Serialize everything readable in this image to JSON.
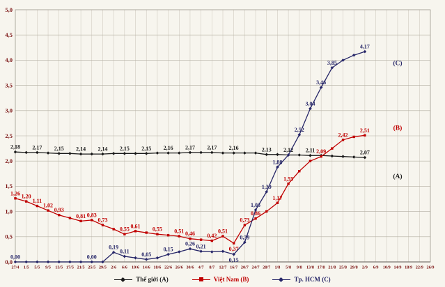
{
  "chart_data": {
    "type": "line",
    "title": "",
    "xlabel": "",
    "ylabel": "",
    "ylim": [
      0,
      5
    ],
    "grid": true,
    "legend_position": "bottom",
    "y_ticks": [
      "0,0",
      "0,5",
      "1,0",
      "1,5",
      "2,0",
      "2,5",
      "3,0",
      "3,5",
      "4,0",
      "4,5",
      "5,0"
    ],
    "categories": [
      "27/4",
      "1/5",
      "5/5",
      "9/5",
      "13/5",
      "17/5",
      "21/5",
      "25/5",
      "29/5",
      "2/6",
      "6/6",
      "10/6",
      "14/6",
      "18/6",
      "22/6",
      "26/6",
      "30/6",
      "4/7",
      "8/7",
      "12/7",
      "16/7",
      "20/7",
      "24/7",
      "28/7",
      "1/8",
      "5/8",
      "9/8",
      "13/8",
      "17/8",
      "21/8",
      "25/8",
      "29/8",
      "2/9",
      "6/9",
      "10/9",
      "14/9",
      "18/9",
      "22/9",
      "26/9"
    ],
    "series": [
      {
        "name": "Thế giới (A)",
        "color": "#1a1a1a",
        "marker": "diamond",
        "values": [
          2.18,
          2.17,
          2.17,
          2.16,
          2.15,
          2.15,
          2.14,
          2.14,
          2.14,
          2.15,
          2.15,
          2.15,
          2.15,
          2.16,
          2.16,
          2.16,
          2.17,
          2.17,
          2.17,
          2.16,
          2.16,
          2.16,
          2.16,
          2.13,
          2.13,
          2.12,
          2.12,
          2.11,
          2.11,
          2.1,
          2.09,
          2.08,
          2.07,
          null,
          null,
          null,
          null,
          null,
          null
        ],
        "point_labels": {
          "0": "2,18",
          "2": "2,17",
          "4": "2,15",
          "6": "2,14",
          "8": "2,14",
          "10": "2,15",
          "12": "2,15",
          "14": "2,16",
          "16": "2,17",
          "18": "2,17",
          "20": "2,16",
          "23": "2,13",
          "25": "2,12",
          "27": "2,11",
          "32": "2,07"
        },
        "labels_below": []
      },
      {
        "name": "Việt Nam (B)",
        "color": "#c00000",
        "marker": "square",
        "values": [
          1.26,
          1.2,
          1.11,
          1.02,
          0.93,
          0.87,
          0.81,
          0.83,
          0.73,
          0.65,
          0.55,
          0.61,
          0.58,
          0.55,
          0.53,
          0.51,
          0.46,
          0.44,
          0.42,
          0.51,
          0.37,
          0.73,
          0.86,
          1.0,
          1.17,
          1.55,
          1.8,
          2.0,
          2.09,
          2.25,
          2.42,
          2.48,
          2.51,
          null,
          null,
          null,
          null,
          null,
          null
        ],
        "point_labels": {
          "0": "1,26",
          "1": "1,20",
          "2": "1,11",
          "3": "1,02",
          "4": "0,93",
          "6": "0,81",
          "7": "0,83",
          "8": "0,73",
          "10": "0,55",
          "11": "0,61",
          "13": "0,55",
          "15": "0,51",
          "16": "0,46",
          "18": "0,42",
          "19": "0,51",
          "20": "0,37",
          "21": "0,73",
          "22": "0,86",
          "24": "1,17",
          "25": "1,55",
          "28": "2,09",
          "30": "2,42",
          "32": "2,51"
        },
        "labels_below": [
          20
        ]
      },
      {
        "name": "Tp. HCM (C)",
        "color": "#262668",
        "marker": "diamond",
        "values": [
          0.0,
          0.0,
          0.0,
          0.0,
          0.0,
          0.0,
          0.0,
          0.0,
          0.0,
          0.19,
          0.11,
          0.08,
          0.05,
          0.08,
          0.15,
          0.2,
          0.26,
          0.21,
          0.2,
          0.21,
          0.15,
          0.39,
          1.03,
          1.39,
          1.88,
          2.12,
          2.52,
          3.04,
          3.46,
          3.85,
          4.0,
          4.1,
          4.17,
          null,
          null,
          null,
          null,
          null,
          null
        ],
        "point_labels": {
          "0": "0,00",
          "7": "0,00",
          "9": "0,19",
          "10": "0,11",
          "12": "0,05",
          "14": "0,15",
          "16": "0,26",
          "17": "0,21",
          "20": "0,15",
          "21": "0,39",
          "22": "1,03",
          "23": "1,39",
          "24": "1,88",
          "26": "2,52",
          "27": "3,04",
          "28": "3,46",
          "29": "3,85",
          "32": "4,17"
        },
        "labels_below": [
          20
        ]
      }
    ],
    "annotations": [
      {
        "text": "(C)",
        "x_index": 35,
        "value": 3.9,
        "color": "#262668"
      },
      {
        "text": "(B)",
        "x_index": 35,
        "value": 2.62,
        "color": "#c00000"
      },
      {
        "text": "(A)",
        "x_index": 35,
        "value": 1.66,
        "color": "#1a1a1a"
      }
    ]
  },
  "legend": {
    "items": [
      {
        "label": "Thế giới (A)",
        "color": "#1a1a1a",
        "marker": "diamond"
      },
      {
        "label": "Việt Nam (B)",
        "color": "#c00000",
        "marker": "square"
      },
      {
        "label": "Tp. HCM (C)",
        "color": "#262668",
        "marker": "diamond"
      }
    ]
  }
}
